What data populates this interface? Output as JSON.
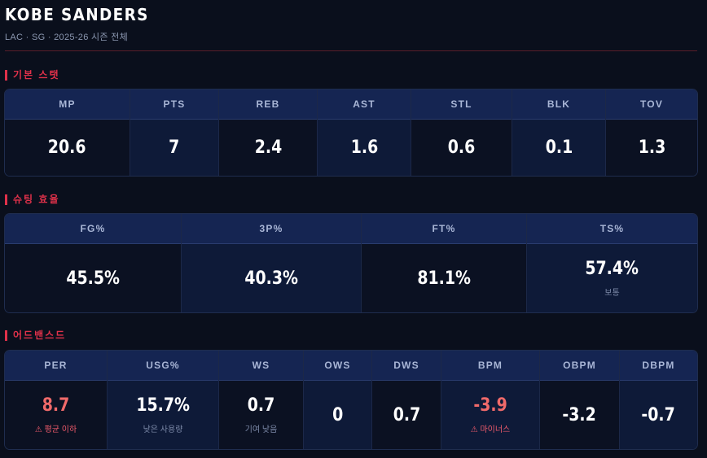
{
  "header": {
    "player_name": "KOBE SANDERS",
    "meta": "LAC · SG · 2025-26 시즌 전체"
  },
  "sections": {
    "basic": {
      "title": "기본 스탯",
      "stats": [
        {
          "label": "MP",
          "value": "20.6"
        },
        {
          "label": "PTS",
          "value": "7"
        },
        {
          "label": "REB",
          "value": "2.4"
        },
        {
          "label": "AST",
          "value": "1.6"
        },
        {
          "label": "STL",
          "value": "0.6"
        },
        {
          "label": "BLK",
          "value": "0.1"
        },
        {
          "label": "TOV",
          "value": "1.3"
        }
      ]
    },
    "shooting": {
      "title": "슈팅 효율",
      "stats": [
        {
          "label": "FG%",
          "value": "45.5%"
        },
        {
          "label": "3P%",
          "value": "40.3%"
        },
        {
          "label": "FT%",
          "value": "81.1%"
        },
        {
          "label": "TS%",
          "value": "57.4%",
          "note": "보통"
        }
      ]
    },
    "advanced": {
      "title": "어드밴스드",
      "stats": [
        {
          "label": "PER",
          "value": "8.7",
          "note": "⚠ 평균 이하"
        },
        {
          "label": "USG%",
          "value": "15.7%",
          "note": "낮은 사용량"
        },
        {
          "label": "WS",
          "value": "0.7",
          "note": "기여 낮음"
        },
        {
          "label": "OWS",
          "value": "0"
        },
        {
          "label": "DWS",
          "value": "0.7"
        },
        {
          "label": "BPM",
          "value": "-3.9",
          "note": "⚠ 마이너스"
        },
        {
          "label": "OBPM",
          "value": "-3.2"
        },
        {
          "label": "DBPM",
          "value": "-0.7"
        }
      ]
    }
  },
  "colors": {
    "accent": "#e0314a",
    "warning_value": "#f06a6a",
    "header_bg": "#152552",
    "page_bg": "#0a0f1c"
  }
}
